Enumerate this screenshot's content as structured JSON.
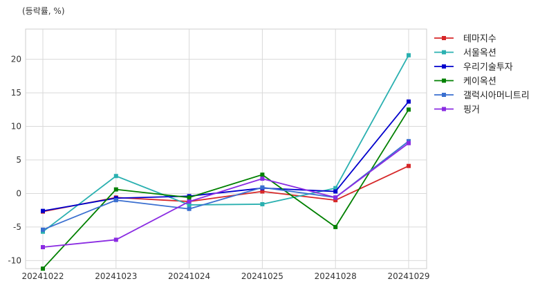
{
  "chart_data": {
    "type": "line",
    "title": "",
    "unit_label": "(등락률, %)",
    "xlabel": "",
    "ylabel": "",
    "categories": [
      "20241022",
      "20241023",
      "20241024",
      "20241025",
      "20241028",
      "20241029"
    ],
    "ylim": [
      -11.2,
      24.5
    ],
    "yticks": [
      -10,
      -5,
      0,
      5,
      10,
      15,
      20
    ],
    "grid": true,
    "legend_position": "right",
    "series": [
      {
        "name": "테마지수",
        "color": "#d62728",
        "values": [
          -2.7,
          -0.6,
          -1.2,
          0.3,
          -1.0,
          4.1
        ]
      },
      {
        "name": "서울옥션",
        "color": "#2ab0b0",
        "values": [
          -5.7,
          2.6,
          -1.7,
          -1.6,
          0.8,
          20.6
        ]
      },
      {
        "name": "우리기술투자",
        "color": "#0000cc",
        "values": [
          -2.6,
          -0.7,
          -0.4,
          0.8,
          0.3,
          13.7
        ]
      },
      {
        "name": "케이옥션",
        "color": "#008000",
        "values": [
          -11.2,
          0.6,
          -0.6,
          2.8,
          -5.0,
          12.5
        ]
      },
      {
        "name": "갤럭시아머니트리",
        "color": "#3a6fd0",
        "values": [
          -5.4,
          -1.0,
          -2.3,
          0.9,
          -0.6,
          7.8
        ]
      },
      {
        "name": "핑거",
        "color": "#8a2be2",
        "values": [
          -8.0,
          -6.9,
          -1.2,
          2.2,
          -0.6,
          7.5
        ]
      }
    ]
  }
}
